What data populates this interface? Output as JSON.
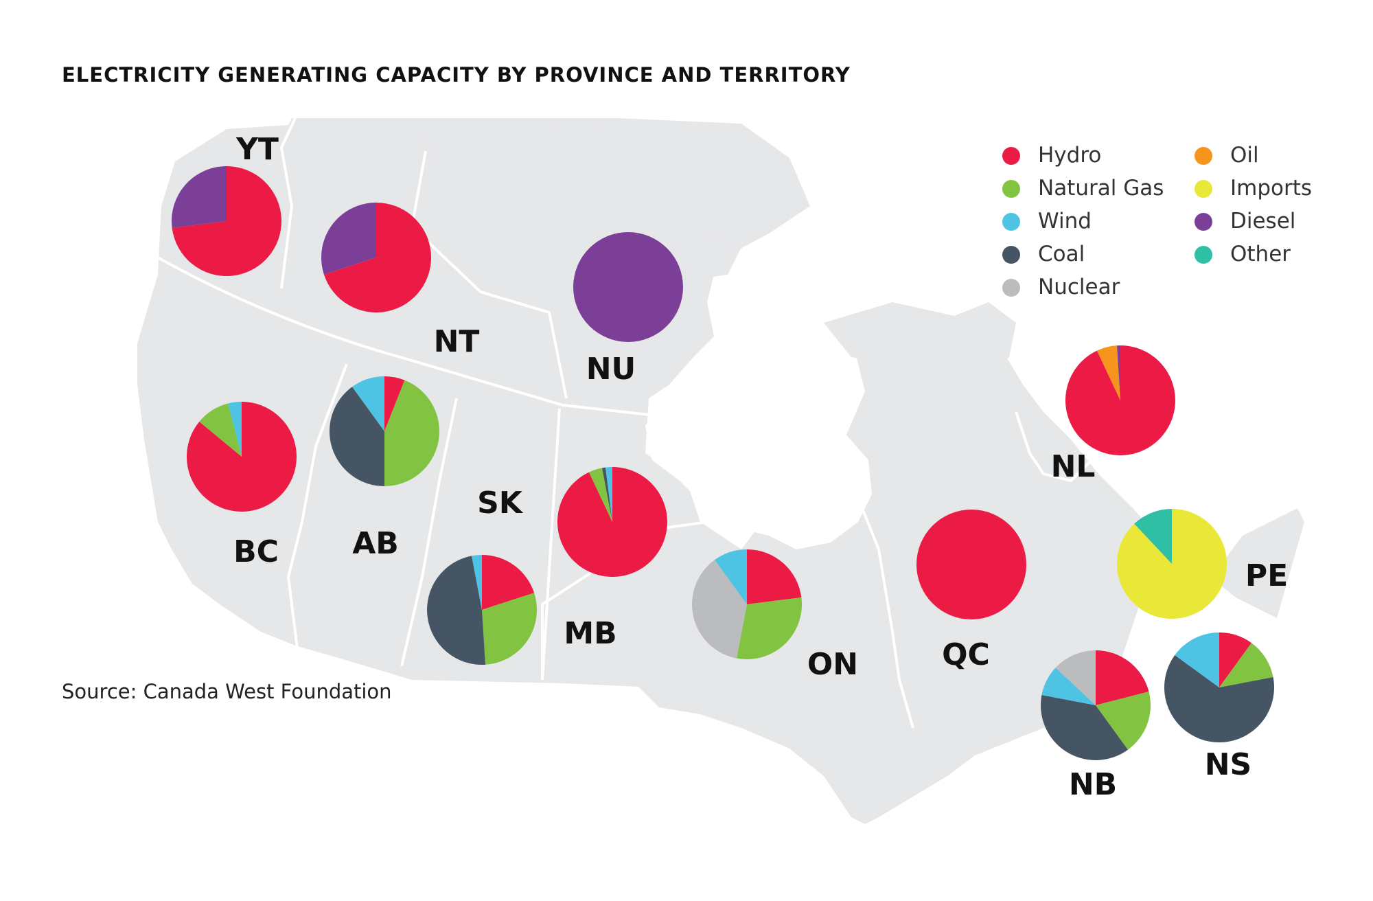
{
  "title": "ELECTRICITY GENERATING CAPACITY BY PROVINCE AND TERRITORY",
  "source": "Source: Canada West Foundation",
  "legend": [
    {
      "key": "hydro",
      "label": "Hydro",
      "color": "#eb1b46"
    },
    {
      "key": "natural_gas",
      "label": "Natural Gas",
      "color": "#82c341"
    },
    {
      "key": "wind",
      "label": "Wind",
      "color": "#4fc3e3"
    },
    {
      "key": "coal",
      "label": "Coal",
      "color": "#465563"
    },
    {
      "key": "nuclear",
      "label": "Nuclear",
      "color": "#bbbcbe"
    },
    {
      "key": "oil",
      "label": "Oil",
      "color": "#f7941d"
    },
    {
      "key": "imports",
      "label": "Imports",
      "color": "#e9e838"
    },
    {
      "key": "diesel",
      "label": "Diesel",
      "color": "#7b3f98"
    },
    {
      "key": "other",
      "label": "Other",
      "color": "#2ebfa5"
    }
  ],
  "chart_data": {
    "type": "pie",
    "unit": "share of generating capacity (%)",
    "regions": [
      {
        "code": "YT",
        "slices": [
          {
            "source": "hydro",
            "value": 73
          },
          {
            "source": "diesel",
            "value": 27
          }
        ]
      },
      {
        "code": "NT",
        "slices": [
          {
            "source": "hydro",
            "value": 70
          },
          {
            "source": "diesel",
            "value": 30
          }
        ]
      },
      {
        "code": "NU",
        "slices": [
          {
            "source": "diesel",
            "value": 100
          }
        ]
      },
      {
        "code": "BC",
        "slices": [
          {
            "source": "hydro",
            "value": 86
          },
          {
            "source": "natural_gas",
            "value": 10
          },
          {
            "source": "wind",
            "value": 4
          }
        ]
      },
      {
        "code": "AB",
        "slices": [
          {
            "source": "hydro",
            "value": 6
          },
          {
            "source": "natural_gas",
            "value": 44
          },
          {
            "source": "coal",
            "value": 40
          },
          {
            "source": "wind",
            "value": 10
          }
        ]
      },
      {
        "code": "SK",
        "slices": [
          {
            "source": "hydro",
            "value": 20
          },
          {
            "source": "natural_gas",
            "value": 29
          },
          {
            "source": "coal",
            "value": 48
          },
          {
            "source": "wind",
            "value": 3
          }
        ]
      },
      {
        "code": "MB",
        "slices": [
          {
            "source": "hydro",
            "value": 93
          },
          {
            "source": "natural_gas",
            "value": 4
          },
          {
            "source": "coal",
            "value": 1
          },
          {
            "source": "wind",
            "value": 2
          }
        ]
      },
      {
        "code": "ON",
        "slices": [
          {
            "source": "hydro",
            "value": 23
          },
          {
            "source": "natural_gas",
            "value": 30
          },
          {
            "source": "nuclear",
            "value": 37
          },
          {
            "source": "wind",
            "value": 10
          }
        ]
      },
      {
        "code": "QC",
        "slices": [
          {
            "source": "hydro",
            "value": 100
          }
        ]
      },
      {
        "code": "NL",
        "slices": [
          {
            "source": "hydro",
            "value": 93
          },
          {
            "source": "oil",
            "value": 6
          },
          {
            "source": "diesel",
            "value": 1
          }
        ]
      },
      {
        "code": "PE",
        "slices": [
          {
            "source": "imports",
            "value": 88
          },
          {
            "source": "other",
            "value": 12
          }
        ]
      },
      {
        "code": "NB",
        "slices": [
          {
            "source": "hydro",
            "value": 21
          },
          {
            "source": "natural_gas",
            "value": 19
          },
          {
            "source": "coal",
            "value": 38
          },
          {
            "source": "wind",
            "value": 9
          },
          {
            "source": "nuclear",
            "value": 13
          }
        ]
      },
      {
        "code": "NS",
        "slices": [
          {
            "source": "hydro",
            "value": 10
          },
          {
            "source": "natural_gas",
            "value": 12
          },
          {
            "source": "coal",
            "value": 63
          },
          {
            "source": "wind",
            "value": 15
          }
        ]
      }
    ]
  }
}
